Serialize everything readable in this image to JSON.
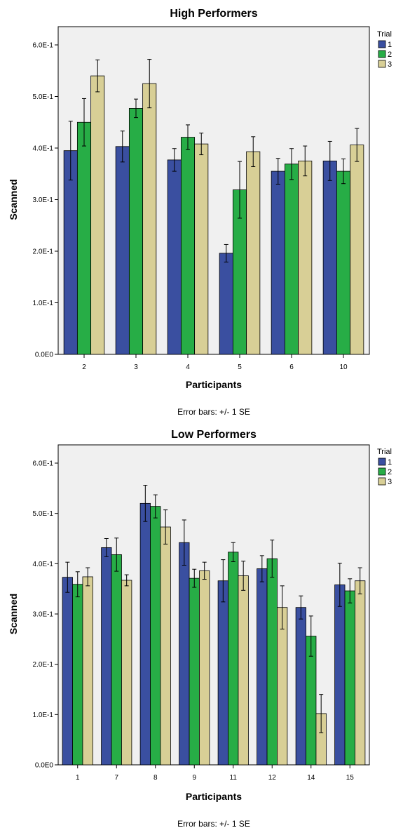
{
  "colors": {
    "trial1": "#3a4fa0",
    "trial2": "#27ad46",
    "trial3": "#d8cf96",
    "plot_bg": "#f0f0f0"
  },
  "chart_data": [
    {
      "type": "bar",
      "title": "High Performers",
      "xlabel": "Participants",
      "ylabel": "Scanned",
      "ylim": [
        0,
        0.6
      ],
      "yticks": [
        0,
        0.1,
        0.2,
        0.3,
        0.4,
        0.5,
        0.6
      ],
      "ytick_labels": [
        "0.0E0",
        "1.0E-1",
        "2.0E-1",
        "3.0E-1",
        "4.0E-1",
        "5.0E-1",
        "6.0E-1"
      ],
      "categories": [
        "2",
        "3",
        "4",
        "5",
        "6",
        "10"
      ],
      "legend_title": "Trial",
      "legend_position": "right",
      "grid": false,
      "series": [
        {
          "name": "1",
          "values": [
            0.395,
            0.403,
            0.377,
            0.196,
            0.355,
            0.375
          ],
          "se": [
            0.057,
            0.03,
            0.022,
            0.017,
            0.025,
            0.038
          ]
        },
        {
          "name": "2",
          "values": [
            0.45,
            0.477,
            0.421,
            0.319,
            0.369,
            0.355
          ],
          "se": [
            0.046,
            0.018,
            0.024,
            0.055,
            0.03,
            0.024
          ]
        },
        {
          "name": "3",
          "values": [
            0.54,
            0.525,
            0.408,
            0.393,
            0.375,
            0.406
          ],
          "se": [
            0.031,
            0.047,
            0.021,
            0.029,
            0.029,
            0.032
          ]
        }
      ],
      "note": "Error bars: +/- 1 SE"
    },
    {
      "type": "bar",
      "title": "Low Performers",
      "xlabel": "Participants",
      "ylabel": "Scanned",
      "ylim": [
        0,
        0.6
      ],
      "yticks": [
        0,
        0.1,
        0.2,
        0.3,
        0.4,
        0.5,
        0.6
      ],
      "ytick_labels": [
        "0.0E0",
        "1.0E-1",
        "2.0E-1",
        "3.0E-1",
        "4.0E-1",
        "5.0E-1",
        "6.0E-1"
      ],
      "categories": [
        "1",
        "7",
        "8",
        "9",
        "11",
        "12",
        "14",
        "15"
      ],
      "legend_title": "Trial",
      "legend_position": "right",
      "grid": false,
      "series": [
        {
          "name": "1",
          "values": [
            0.373,
            0.432,
            0.52,
            0.442,
            0.366,
            0.39,
            0.313,
            0.358
          ],
          "se": [
            0.03,
            0.018,
            0.036,
            0.045,
            0.042,
            0.026,
            0.023,
            0.043
          ]
        },
        {
          "name": "2",
          "values": [
            0.359,
            0.418,
            0.514,
            0.371,
            0.423,
            0.41,
            0.256,
            0.346
          ],
          "se": [
            0.025,
            0.033,
            0.023,
            0.018,
            0.019,
            0.037,
            0.04,
            0.024
          ]
        },
        {
          "name": "3",
          "values": [
            0.374,
            0.367,
            0.473,
            0.386,
            0.376,
            0.313,
            0.102,
            0.366
          ],
          "se": [
            0.018,
            0.011,
            0.034,
            0.017,
            0.029,
            0.043,
            0.038,
            0.026
          ]
        }
      ],
      "note": "Error bars: +/- 1 SE"
    }
  ]
}
